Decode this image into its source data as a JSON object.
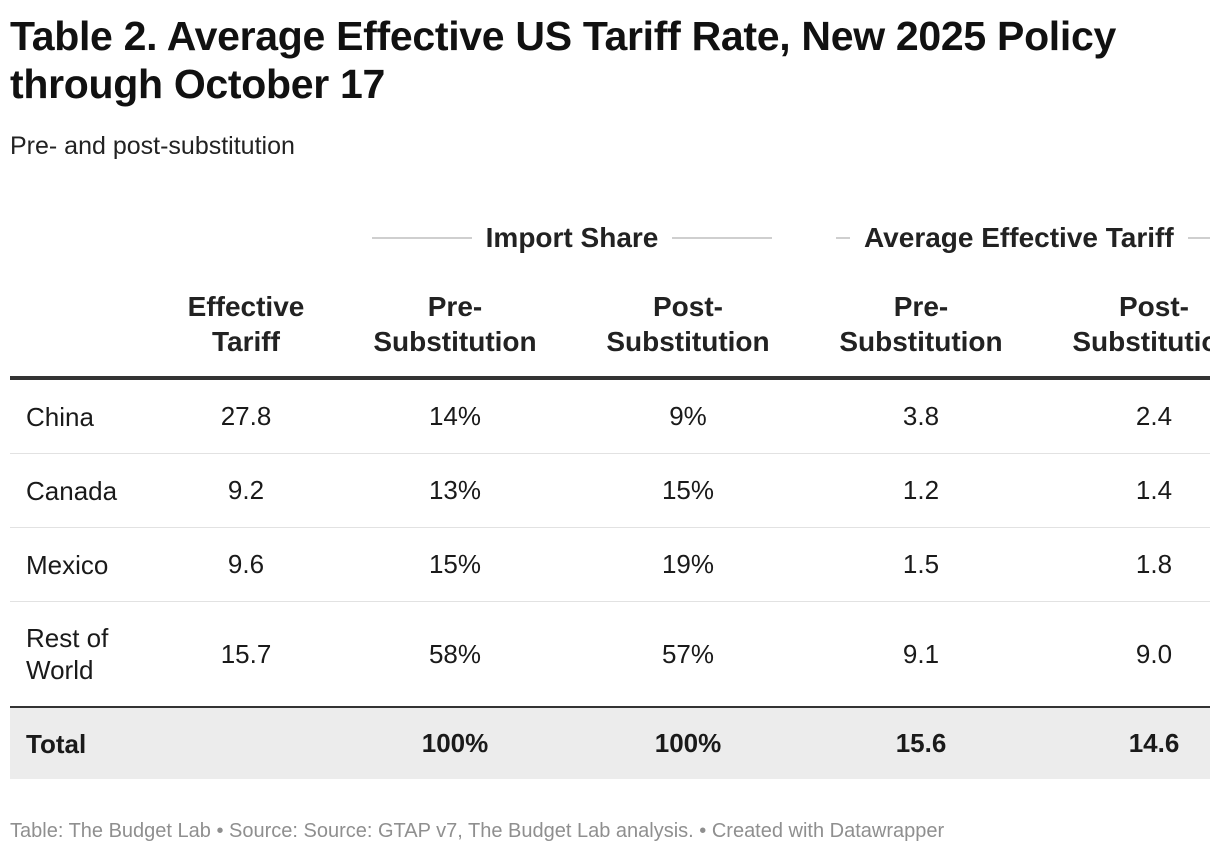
{
  "title": "Table 2. Average Effective US Tariff Rate, New 2025 Policy through October 17",
  "subtitle": "Pre- and post-substitution",
  "groups": {
    "import_share": "Import Share",
    "avg_tariff": "Average Effective Tariff"
  },
  "columns": {
    "effective_tariff": "Effective Tariff",
    "is_pre": "Pre-\nSubstitution",
    "is_post": "Post-\nSubstitution",
    "at_pre": "Pre-\nSubstitution",
    "at_post": "Post-\nSubstitution"
  },
  "footer": "Table: The Budget Lab • Source: Source: GTAP v7, The Budget Lab analysis. • Created with Datawrapper",
  "chart_data": {
    "type": "table",
    "title": "Table 2. Average Effective US Tariff Rate, New 2025 Policy through October 17",
    "subtitle": "Pre- and post-substitution",
    "column_groups": [
      {
        "name": "",
        "columns": [
          "Effective Tariff"
        ]
      },
      {
        "name": "Import Share",
        "columns": [
          "Pre-Substitution",
          "Post-Substitution"
        ]
      },
      {
        "name": "Average Effective Tariff",
        "columns": [
          "Pre-Substitution",
          "Post-Substitution"
        ]
      }
    ],
    "rows": [
      {
        "country": "China",
        "effective_tariff": "27.8",
        "is_pre": "14%",
        "is_post": "9%",
        "at_pre": "3.8",
        "at_post": "2.4"
      },
      {
        "country": "Canada",
        "effective_tariff": "9.2",
        "is_pre": "13%",
        "is_post": "15%",
        "at_pre": "1.2",
        "at_post": "1.4"
      },
      {
        "country": "Mexico",
        "effective_tariff": "9.6",
        "is_pre": "15%",
        "is_post": "19%",
        "at_pre": "1.5",
        "at_post": "1.8"
      },
      {
        "country": "Rest of World",
        "effective_tariff": "15.7",
        "is_pre": "58%",
        "is_post": "57%",
        "at_pre": "9.1",
        "at_post": "9.0"
      }
    ],
    "total": {
      "country": "Total",
      "effective_tariff": "",
      "is_pre": "100%",
      "is_post": "100%",
      "at_pre": "15.6",
      "at_post": "14.6"
    }
  }
}
